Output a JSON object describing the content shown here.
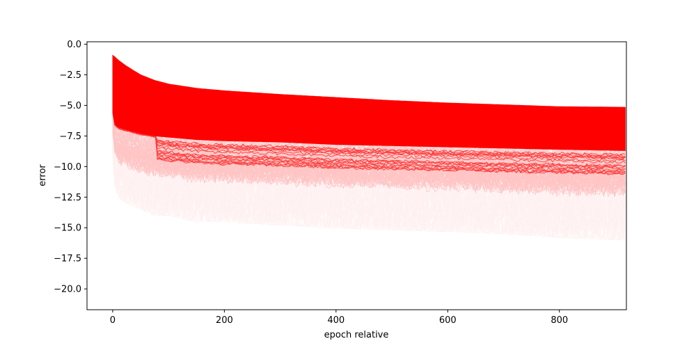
{
  "chart_data": {
    "type": "line",
    "title": "",
    "xlabel": "epoch relative",
    "ylabel": "error",
    "xlim": [
      -46,
      920
    ],
    "ylim": [
      -21.7,
      0.2
    ],
    "xticks": [
      0,
      200,
      400,
      600,
      800
    ],
    "xtick_labels": [
      "0",
      "200",
      "400",
      "600",
      "800"
    ],
    "yticks": [
      0.0,
      -2.5,
      -5.0,
      -7.5,
      -10.0,
      -12.5,
      -15.0,
      -17.5,
      -20.0
    ],
    "ytick_labels": [
      "0.0",
      "−2.5",
      "−5.0",
      "−7.5",
      "−10.0",
      "−12.5",
      "−15.0",
      "−17.5",
      "−20.0"
    ],
    "grid": false,
    "series_color": "#ff0000",
    "x_extent": [
      0,
      918
    ],
    "envelope": {
      "x": [
        0,
        3,
        10,
        25,
        50,
        75,
        100,
        150,
        200,
        300,
        400,
        500,
        600,
        700,
        800,
        918
      ],
      "upper": [
        -0.9,
        -1.0,
        -1.3,
        -1.8,
        -2.5,
        -2.95,
        -3.25,
        -3.6,
        -3.8,
        -4.1,
        -4.35,
        -4.6,
        -4.8,
        -4.95,
        -5.1,
        -5.15
      ],
      "dense_lower": [
        -5.5,
        -6.5,
        -6.8,
        -7.0,
        -7.3,
        -7.5,
        -7.6,
        -7.8,
        -7.9,
        -8.0,
        -8.2,
        -8.3,
        -8.4,
        -8.5,
        -8.6,
        -8.7
      ],
      "sparse_lower": [
        -9.0,
        -11.5,
        -12.5,
        -13.0,
        -13.5,
        -14.0,
        -14.0,
        -14.5,
        -14.5,
        -14.8,
        -15.0,
        -15.2,
        -15.3,
        -15.5,
        -15.8,
        -16.0
      ]
    }
  }
}
